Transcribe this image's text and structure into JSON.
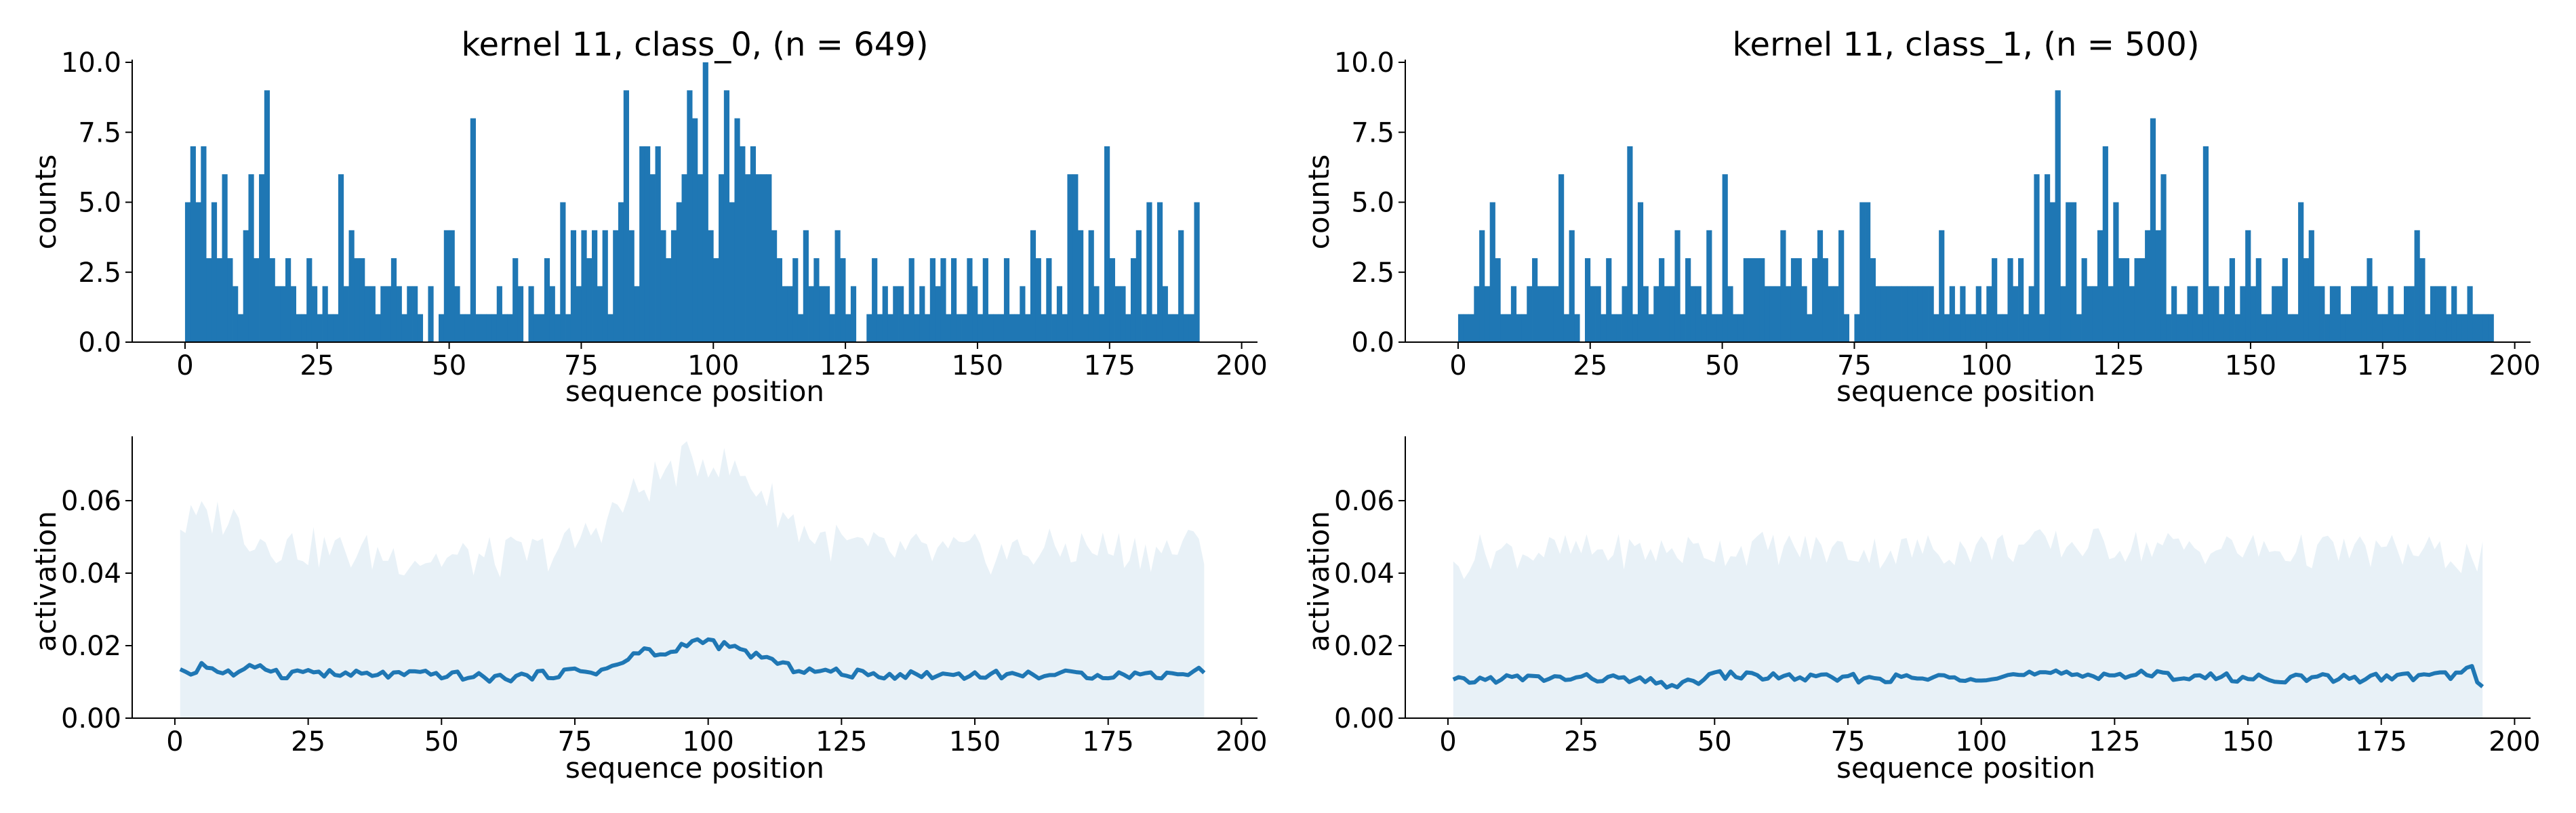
{
  "colors": {
    "bar": "#1f77b4",
    "line": "#1f77b4",
    "band": "#1f77b4",
    "axis": "#000000"
  },
  "chart_data": [
    {
      "id": "hist-class0",
      "type": "bar",
      "title": "kernel 11, class_0, (n = 649)",
      "xlabel": "sequence position",
      "ylabel": "counts",
      "xlim": [
        -10,
        203
      ],
      "ylim": [
        0,
        10
      ],
      "xticks": [
        0,
        25,
        50,
        75,
        100,
        125,
        150,
        175,
        200
      ],
      "yticks": [
        0.0,
        2.5,
        5.0,
        7.5,
        10.0
      ],
      "xtick_labels": [
        "0",
        "25",
        "50",
        "75",
        "100",
        "125",
        "150",
        "175",
        "200"
      ],
      "ytick_labels": [
        "0.0",
        "2.5",
        "5.0",
        "7.5",
        "10.0"
      ],
      "x_start": 0,
      "values": [
        5,
        7,
        5,
        7,
        3,
        5,
        3,
        6,
        3,
        2,
        1,
        4,
        6,
        3,
        6,
        9,
        3,
        2,
        2,
        3,
        2,
        1,
        1,
        3,
        2,
        1,
        2,
        1,
        1,
        6,
        2,
        4,
        3,
        3,
        2,
        2,
        1,
        2,
        2,
        3,
        2,
        1,
        2,
        2,
        1,
        0,
        2,
        0,
        1,
        4,
        4,
        2,
        1,
        1,
        8,
        1,
        1,
        1,
        1,
        2,
        1,
        1,
        3,
        2,
        0,
        2,
        1,
        1,
        3,
        2,
        1,
        5,
        1,
        4,
        2,
        4,
        3,
        4,
        2,
        4,
        1,
        4,
        5,
        9,
        4,
        2,
        7,
        7,
        6,
        7,
        4,
        3,
        4,
        5,
        6,
        9,
        8,
        6,
        10,
        4,
        3,
        6,
        9,
        5,
        8,
        7,
        6,
        7,
        6,
        6,
        6,
        4,
        3,
        2,
        2,
        3,
        1,
        4,
        2,
        3,
        2,
        2,
        1,
        4,
        3,
        1,
        2,
        0,
        0,
        1,
        3,
        1,
        2,
        1,
        2,
        2,
        1,
        3,
        1,
        2,
        1,
        3,
        2,
        3,
        1,
        3,
        1,
        1,
        3,
        2,
        1,
        3,
        1,
        1,
        1,
        3,
        1,
        1,
        2,
        1,
        4,
        3,
        1,
        3,
        1,
        2,
        1,
        6,
        6,
        4,
        1,
        4,
        2,
        1,
        7,
        3,
        2,
        2,
        1,
        3,
        4,
        1,
        5,
        1,
        5,
        2,
        1,
        1,
        4,
        1,
        1,
        5
      ]
    },
    {
      "id": "hist-class1",
      "type": "bar",
      "title": "kernel 11, class_1, (n = 500)",
      "xlabel": "sequence position",
      "ylabel": "counts",
      "xlim": [
        -10,
        203
      ],
      "ylim": [
        0,
        10
      ],
      "xticks": [
        0,
        25,
        50,
        75,
        100,
        125,
        150,
        175,
        200
      ],
      "yticks": [
        0.0,
        2.5,
        5.0,
        7.5,
        10.0
      ],
      "xtick_labels": [
        "0",
        "25",
        "50",
        "75",
        "100",
        "125",
        "150",
        "175",
        "200"
      ],
      "ytick_labels": [
        "0.0",
        "2.5",
        "5.0",
        "7.5",
        "10.0"
      ],
      "x_start": 0,
      "values": [
        1,
        1,
        1,
        2,
        4,
        2,
        5,
        3,
        1,
        1,
        2,
        1,
        1,
        2,
        3,
        2,
        2,
        2,
        2,
        6,
        1,
        4,
        1,
        0,
        3,
        2,
        2,
        1,
        3,
        1,
        1,
        2,
        7,
        1,
        5,
        2,
        1,
        2,
        3,
        2,
        2,
        4,
        1,
        3,
        2,
        2,
        1,
        4,
        1,
        1,
        6,
        2,
        1,
        1,
        3,
        3,
        3,
        3,
        2,
        2,
        2,
        4,
        2,
        3,
        3,
        2,
        1,
        3,
        4,
        3,
        2,
        2,
        4,
        1,
        0,
        1,
        5,
        5,
        3,
        2,
        2,
        2,
        2,
        2,
        2,
        2,
        2,
        2,
        2,
        2,
        1,
        4,
        1,
        2,
        1,
        2,
        1,
        1,
        2,
        1,
        2,
        3,
        1,
        1,
        3,
        2,
        3,
        1,
        2,
        6,
        1,
        6,
        5,
        9,
        2,
        5,
        5,
        1,
        3,
        2,
        2,
        4,
        7,
        2,
        5,
        3,
        3,
        2,
        3,
        3,
        4,
        8,
        4,
        6,
        1,
        2,
        1,
        1,
        2,
        2,
        1,
        7,
        2,
        2,
        1,
        2,
        3,
        1,
        2,
        4,
        2,
        3,
        1,
        1,
        2,
        2,
        3,
        1,
        1,
        5,
        3,
        4,
        2,
        2,
        1,
        2,
        2,
        1,
        1,
        2,
        2,
        2,
        3,
        2,
        1,
        1,
        2,
        1,
        1,
        2,
        2,
        4,
        3,
        1,
        2,
        2,
        2,
        1,
        2,
        1,
        1,
        2,
        1,
        1,
        1,
        1
      ]
    },
    {
      "id": "act-class0",
      "type": "area",
      "xlabel": "sequence position",
      "ylabel": "activation",
      "xlim": [
        -8,
        203
      ],
      "ylim": [
        0,
        0.077
      ],
      "xticks": [
        0,
        25,
        50,
        75,
        100,
        125,
        150,
        175,
        200
      ],
      "yticks": [
        0.0,
        0.02,
        0.04,
        0.06
      ],
      "xtick_labels": [
        "0",
        "25",
        "50",
        "75",
        "100",
        "125",
        "150",
        "175",
        "200"
      ],
      "ytick_labels": [
        "0.00",
        "0.02",
        "0.04",
        "0.06"
      ],
      "x_start": 1,
      "x_end": 193,
      "mean_anchors": [
        [
          1,
          0.014
        ],
        [
          3,
          0.012
        ],
        [
          5,
          0.015
        ],
        [
          8,
          0.013
        ],
        [
          12,
          0.012
        ],
        [
          16,
          0.015
        ],
        [
          20,
          0.012
        ],
        [
          25,
          0.013
        ],
        [
          30,
          0.012
        ],
        [
          40,
          0.012
        ],
        [
          50,
          0.012
        ],
        [
          60,
          0.011
        ],
        [
          70,
          0.012
        ],
        [
          75,
          0.013
        ],
        [
          80,
          0.013
        ],
        [
          85,
          0.016
        ],
        [
          88,
          0.019
        ],
        [
          92,
          0.017
        ],
        [
          96,
          0.021
        ],
        [
          100,
          0.021
        ],
        [
          105,
          0.019
        ],
        [
          110,
          0.017
        ],
        [
          115,
          0.014
        ],
        [
          120,
          0.013
        ],
        [
          130,
          0.012
        ],
        [
          150,
          0.012
        ],
        [
          170,
          0.012
        ],
        [
          185,
          0.012
        ],
        [
          193,
          0.013
        ]
      ],
      "upper_anchors": [
        [
          1,
          0.053
        ],
        [
          5,
          0.055
        ],
        [
          10,
          0.056
        ],
        [
          15,
          0.05
        ],
        [
          20,
          0.048
        ],
        [
          30,
          0.046
        ],
        [
          40,
          0.045
        ],
        [
          50,
          0.044
        ],
        [
          60,
          0.044
        ],
        [
          70,
          0.046
        ],
        [
          75,
          0.048
        ],
        [
          80,
          0.054
        ],
        [
          85,
          0.06
        ],
        [
          90,
          0.066
        ],
        [
          95,
          0.07
        ],
        [
          100,
          0.072
        ],
        [
          105,
          0.068
        ],
        [
          110,
          0.063
        ],
        [
          115,
          0.055
        ],
        [
          120,
          0.05
        ],
        [
          130,
          0.046
        ],
        [
          150,
          0.045
        ],
        [
          170,
          0.047
        ],
        [
          185,
          0.046
        ],
        [
          193,
          0.048
        ]
      ],
      "noise_amp": 0.0012,
      "upper_noise_amp": 0.006
    },
    {
      "id": "act-class1",
      "type": "area",
      "xlabel": "sequence position",
      "ylabel": "activation",
      "xlim": [
        -8,
        203
      ],
      "ylim": [
        0,
        0.077
      ],
      "xticks": [
        0,
        25,
        50,
        75,
        100,
        125,
        150,
        175,
        200
      ],
      "yticks": [
        0.0,
        0.02,
        0.04,
        0.06
      ],
      "xtick_labels": [
        "0",
        "25",
        "50",
        "75",
        "100",
        "125",
        "150",
        "175",
        "200"
      ],
      "ytick_labels": [
        "0.00",
        "0.02",
        "0.04",
        "0.06"
      ],
      "x_start": 1,
      "x_end": 194,
      "mean_anchors": [
        [
          1,
          0.01
        ],
        [
          10,
          0.011
        ],
        [
          30,
          0.011
        ],
        [
          44,
          0.009
        ],
        [
          50,
          0.012
        ],
        [
          70,
          0.011
        ],
        [
          90,
          0.011
        ],
        [
          110,
          0.012
        ],
        [
          130,
          0.012
        ],
        [
          150,
          0.011
        ],
        [
          170,
          0.011
        ],
        [
          190,
          0.012
        ],
        [
          192,
          0.014
        ],
        [
          194,
          0.008
        ]
      ],
      "upper_anchors": [
        [
          1,
          0.04
        ],
        [
          5,
          0.046
        ],
        [
          20,
          0.046
        ],
        [
          40,
          0.046
        ],
        [
          60,
          0.047
        ],
        [
          80,
          0.046
        ],
        [
          100,
          0.047
        ],
        [
          120,
          0.048
        ],
        [
          140,
          0.047
        ],
        [
          160,
          0.046
        ],
        [
          180,
          0.046
        ],
        [
          194,
          0.044
        ]
      ],
      "noise_amp": 0.0012,
      "upper_noise_amp": 0.005
    }
  ]
}
